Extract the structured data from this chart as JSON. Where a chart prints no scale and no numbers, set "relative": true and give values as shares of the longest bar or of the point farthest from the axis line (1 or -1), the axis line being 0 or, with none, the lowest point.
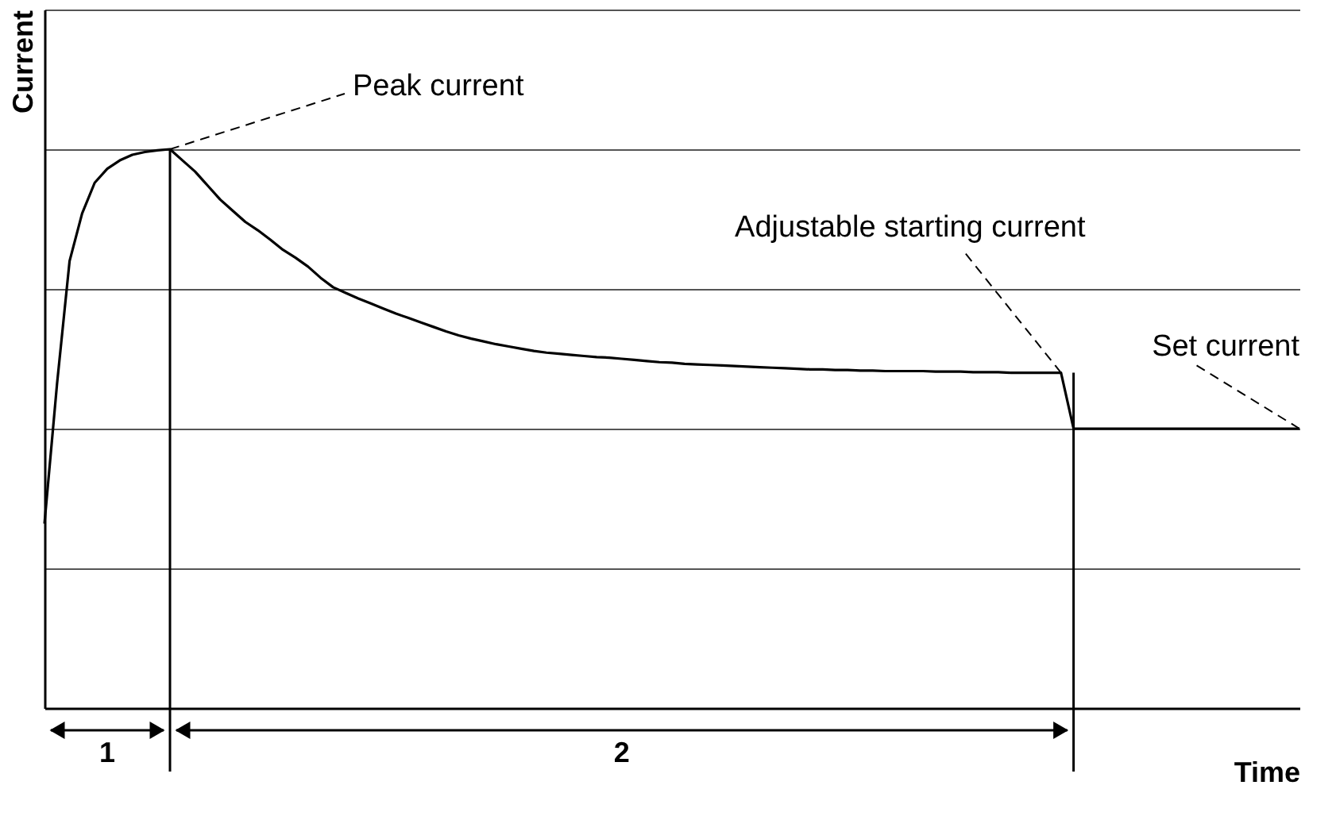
{
  "chart_data": {
    "type": "line",
    "relative": true,
    "xlabel": "Time",
    "ylabel": "Current",
    "categories": [
      null,
      null,
      null,
      null,
      null,
      null,
      null,
      null,
      null,
      null,
      null,
      null,
      null,
      null,
      null,
      null,
      null,
      null,
      null,
      null,
      null,
      null,
      null,
      null,
      null,
      null,
      null,
      null,
      null,
      null,
      null,
      null,
      null,
      null,
      null,
      null,
      null,
      null,
      null,
      null,
      null,
      null,
      null,
      null,
      null,
      null,
      null,
      null,
      null,
      null,
      null,
      null,
      null,
      null,
      null,
      null,
      null,
      null,
      null,
      null,
      null,
      null,
      null,
      null,
      null,
      null,
      null,
      null,
      null,
      null,
      null,
      null,
      null,
      null,
      null,
      null,
      null,
      null,
      null,
      null,
      null,
      null,
      null,
      null,
      null,
      null,
      null,
      null,
      null,
      null,
      null,
      null,
      null,
      null,
      null,
      null,
      null,
      null,
      null,
      null,
      null
    ],
    "series": [
      {
        "color": "#000000",
        "values": [
          0.33,
          0.58,
          0.8,
          0.885,
          0.94,
          0.965,
          0.98,
          0.99,
          0.995,
          0.998,
          1.0,
          0.98,
          0.96,
          0.935,
          0.91,
          0.89,
          0.87,
          0.855,
          0.838,
          0.82,
          0.806,
          0.79,
          0.77,
          0.753,
          0.743,
          0.733,
          0.724,
          0.715,
          0.706,
          0.698,
          0.69,
          0.682,
          0.674,
          0.667,
          0.661,
          0.656,
          0.651,
          0.647,
          0.643,
          0.639,
          0.636,
          0.634,
          0.632,
          0.63,
          0.628,
          0.627,
          0.625,
          0.623,
          0.621,
          0.619,
          0.618,
          0.616,
          0.615,
          0.614,
          0.613,
          0.612,
          0.611,
          0.61,
          0.609,
          0.608,
          0.607,
          0.606,
          0.606,
          0.605,
          0.605,
          0.604,
          0.604,
          0.603,
          0.603,
          0.603,
          0.603,
          0.602,
          0.602,
          0.602,
          0.601,
          0.601,
          0.601,
          0.6,
          0.6,
          0.6,
          0.6,
          0.6,
          0.5,
          0.5,
          0.5,
          0.5,
          0.5,
          0.5,
          0.5,
          0.5,
          0.5,
          0.5,
          0.5,
          0.5,
          0.5,
          0.5,
          0.5,
          0.5,
          0.5,
          0.5,
          0.5
        ]
      }
    ],
    "grid": "y",
    "marker": "none",
    "line_style": "solid",
    "annotations": [
      "1",
      "2",
      "Peak current",
      "Adjustable starting current",
      "Set current"
    ]
  }
}
